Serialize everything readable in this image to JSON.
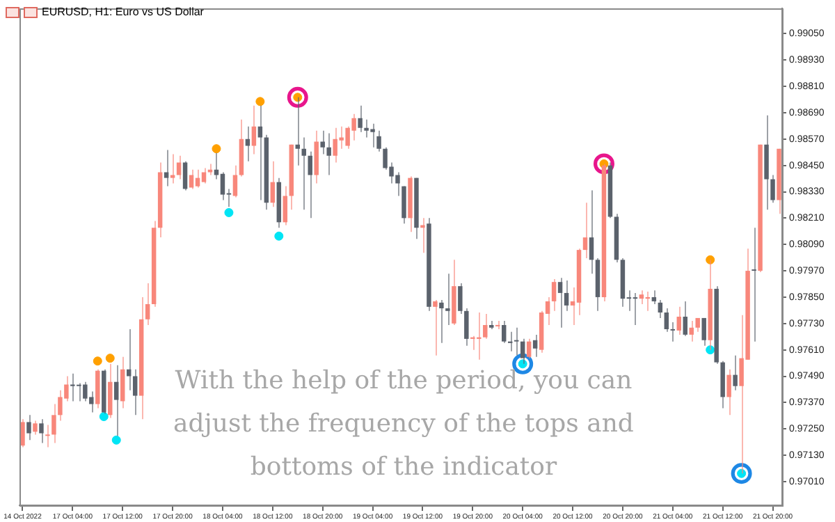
{
  "chart_data": {
    "type": "candlestick",
    "title": "EURUSD, H1: Euro vs US Dollar",
    "annotations": [
      "With the help of the period, you can adjust the frequency of the tops and bottoms of the indicator"
    ],
    "categories": [
      "14 Oct 2022",
      null,
      null,
      null,
      null,
      null,
      null,
      null,
      "17 Oct 04:00",
      null,
      null,
      null,
      null,
      null,
      null,
      null,
      "17 Oct 12:00",
      null,
      null,
      null,
      null,
      null,
      null,
      null,
      "17 Oct 20:00",
      null,
      null,
      null,
      null,
      null,
      null,
      null,
      "18 Oct 04:00",
      null,
      null,
      null,
      null,
      null,
      null,
      null,
      "18 Oct 12:00",
      null,
      null,
      null,
      null,
      null,
      null,
      null,
      "18 Oct 20:00",
      null,
      null,
      null,
      null,
      null,
      null,
      null,
      "19 Oct 04:00",
      null,
      null,
      null,
      null,
      null,
      null,
      null,
      "19 Oct 12:00",
      null,
      null,
      null,
      null,
      null,
      null,
      null,
      "19 Oct 20:00",
      null,
      null,
      null,
      null,
      null,
      null,
      null,
      "20 Oct 04:00",
      null,
      null,
      null,
      null,
      null,
      null,
      null,
      "20 Oct 12:00",
      null,
      null,
      null,
      null,
      null,
      null,
      null,
      "20 Oct 20:00",
      null,
      null,
      null,
      null,
      null,
      null,
      null,
      "21 Oct 04:00",
      null,
      null,
      null,
      null,
      null,
      null,
      null,
      "21 Oct 12:00",
      null,
      null,
      null,
      null,
      null,
      null,
      null,
      "21 Oct 20:00",
      null
    ],
    "ohlc": [
      [
        0.97174,
        0.97294,
        0.97167,
        0.97281
      ],
      [
        0.97281,
        0.97313,
        0.97199,
        0.9723
      ],
      [
        0.97237,
        0.97287,
        0.97224,
        0.97275
      ],
      [
        0.97275,
        0.97294,
        0.97186,
        0.9723
      ],
      [
        0.97218,
        0.97268,
        0.97167,
        0.97224
      ],
      [
        0.97224,
        0.97363,
        0.97186,
        0.97313
      ],
      [
        0.97313,
        0.97426,
        0.97287,
        0.97395
      ],
      [
        0.97388,
        0.9749,
        0.97376,
        0.97452
      ],
      [
        0.97452,
        0.97502,
        0.97376,
        0.97445
      ],
      [
        0.97445,
        0.97458,
        0.97376,
        0.97445
      ],
      [
        0.97452,
        0.97464,
        0.97376,
        0.97388
      ],
      [
        0.97395,
        0.9742,
        0.97325,
        0.97363
      ],
      [
        0.97363,
        0.97521,
        0.97344,
        0.97515
      ],
      [
        0.97515,
        0.97521,
        0.97319,
        0.97325
      ],
      [
        0.97313,
        0.97546,
        0.973,
        0.97464
      ],
      [
        0.97464,
        0.9754,
        0.97218,
        0.97382
      ],
      [
        0.97376,
        0.97578,
        0.97344,
        0.97521
      ],
      [
        0.97521,
        0.97704,
        0.97426,
        0.9749
      ],
      [
        0.9749,
        0.97521,
        0.97313,
        0.97401
      ],
      [
        0.97401,
        0.9785,
        0.97294,
        0.97749
      ],
      [
        0.97749,
        0.97913,
        0.97723,
        0.97818
      ],
      [
        0.97818,
        0.98197,
        0.97806,
        0.98166
      ],
      [
        0.98166,
        0.98463,
        0.98122,
        0.98419
      ],
      [
        0.98419,
        0.9852,
        0.98355,
        0.98393
      ],
      [
        0.98393,
        0.98501,
        0.98368,
        0.98406
      ],
      [
        0.98406,
        0.98494,
        0.98387,
        0.98463
      ],
      [
        0.98463,
        0.98469,
        0.98336,
        0.98343
      ],
      [
        0.98349,
        0.98431,
        0.98343,
        0.98406
      ],
      [
        0.98355,
        0.98431,
        0.98349,
        0.98393
      ],
      [
        0.98374,
        0.98438,
        0.98368,
        0.98419
      ],
      [
        0.98419,
        0.98457,
        0.98406,
        0.98431
      ],
      [
        0.98431,
        0.98507,
        0.98387,
        0.98406
      ],
      [
        0.98412,
        0.98419,
        0.98292,
        0.98317
      ],
      [
        0.98317,
        0.98343,
        0.98261,
        0.98317
      ],
      [
        0.98311,
        0.9845,
        0.98305,
        0.98406
      ],
      [
        0.98406,
        0.98659,
        0.984,
        0.9857
      ],
      [
        0.9857,
        0.98627,
        0.98469,
        0.98539
      ],
      [
        0.98539,
        0.98722,
        0.98501,
        0.98627
      ],
      [
        0.98627,
        0.98722,
        0.98292,
        0.98577
      ],
      [
        0.98577,
        0.98589,
        0.98248,
        0.9828
      ],
      [
        0.9828,
        0.98469,
        0.98261,
        0.98374
      ],
      [
        0.98374,
        0.98393,
        0.98166,
        0.98191
      ],
      [
        0.98191,
        0.98355,
        0.98178,
        0.98311
      ],
      [
        0.98311,
        0.98545,
        0.98248,
        0.98545
      ],
      [
        0.98545,
        0.9876,
        0.9845,
        0.98526
      ],
      [
        0.98526,
        0.98577,
        0.98248,
        0.98494
      ],
      [
        0.98494,
        0.98513,
        0.9821,
        0.98406
      ],
      [
        0.98406,
        0.98608,
        0.98368,
        0.98558
      ],
      [
        0.98558,
        0.98608,
        0.98501,
        0.98532
      ],
      [
        0.98532,
        0.98596,
        0.98406,
        0.98494
      ],
      [
        0.98494,
        0.98621,
        0.98463,
        0.9857
      ],
      [
        0.98564,
        0.98627,
        0.98526,
        0.98577
      ],
      [
        0.98539,
        0.98627,
        0.98526,
        0.98621
      ],
      [
        0.98608,
        0.98684,
        0.98564,
        0.98665
      ],
      [
        0.98665,
        0.98722,
        0.98602,
        0.98621
      ],
      [
        0.98621,
        0.98659,
        0.98577,
        0.98608
      ],
      [
        0.98615,
        0.9864,
        0.98532,
        0.98602
      ],
      [
        0.98583,
        0.98608,
        0.98513,
        0.98526
      ],
      [
        0.98526,
        0.98532,
        0.98431,
        0.98438
      ],
      [
        0.98444,
        0.98463,
        0.98368,
        0.984
      ],
      [
        0.98406,
        0.98419,
        0.98311,
        0.98368
      ],
      [
        0.98355,
        0.98355,
        0.98185,
        0.9821
      ],
      [
        0.9821,
        0.984,
        0.98147,
        0.98393
      ],
      [
        0.98393,
        0.98393,
        0.98115,
        0.98166
      ],
      [
        0.98166,
        0.9821,
        0.98052,
        0.98178
      ],
      [
        0.98185,
        0.9821,
        0.97787,
        0.97806
      ],
      [
        0.97806,
        0.97837,
        0.97584,
        0.97831
      ],
      [
        0.97825,
        0.97837,
        0.97641,
        0.97799
      ],
      [
        0.97799,
        0.97957,
        0.97723,
        0.97787
      ],
      [
        0.9773,
        0.9802,
        0.97723,
        0.979
      ],
      [
        0.979,
        0.97913,
        0.97774,
        0.97787
      ],
      [
        0.97787,
        0.97799,
        0.97629,
        0.9766
      ],
      [
        0.9766,
        0.97673,
        0.9761,
        0.97667
      ],
      [
        0.9766,
        0.9778,
        0.97565,
        0.97667
      ],
      [
        0.97667,
        0.97774,
        0.9766,
        0.97723
      ],
      [
        0.97723,
        0.97742,
        0.97704,
        0.97711
      ],
      [
        0.97717,
        0.97742,
        0.97704,
        0.97723
      ],
      [
        0.97723,
        0.97742,
        0.97641,
        0.97648
      ],
      [
        0.97648,
        0.97692,
        0.97603,
        0.97641
      ],
      [
        0.97648,
        0.97711,
        0.97584,
        0.97648
      ],
      [
        0.97648,
        0.9766,
        0.97546,
        0.97572
      ],
      [
        0.97578,
        0.9766,
        0.97572,
        0.97648
      ],
      [
        0.97654,
        0.97679,
        0.97578,
        0.97616
      ],
      [
        0.9761,
        0.97787,
        0.97597,
        0.9778
      ],
      [
        0.97774,
        0.9785,
        0.97723,
        0.97831
      ],
      [
        0.97831,
        0.97932,
        0.97787,
        0.97919
      ],
      [
        0.97919,
        0.97938,
        0.97711,
        0.97869
      ],
      [
        0.97869,
        0.97926,
        0.97787,
        0.97812
      ],
      [
        0.97812,
        0.97894,
        0.97723,
        0.97831
      ],
      [
        0.97825,
        0.98071,
        0.97768,
        0.98065
      ],
      [
        0.98065,
        0.9828,
        0.98027,
        0.98122
      ],
      [
        0.98122,
        0.98336,
        0.97957,
        0.9802
      ],
      [
        0.9802,
        0.98027,
        0.97787,
        0.9785
      ],
      [
        0.9785,
        0.98457,
        0.97831,
        0.9845
      ],
      [
        0.9845,
        0.98463,
        0.9821,
        0.98216
      ],
      [
        0.98216,
        0.98229,
        0.98008,
        0.9802
      ],
      [
        0.9802,
        0.98027,
        0.97806,
        0.97843
      ],
      [
        0.97843,
        0.97881,
        0.97787,
        0.97843
      ],
      [
        0.97843,
        0.97869,
        0.97723,
        0.97843
      ],
      [
        0.97843,
        0.97881,
        0.97818,
        0.97862
      ],
      [
        0.97843,
        0.97875,
        0.97787,
        0.9785
      ],
      [
        0.9785,
        0.97881,
        0.97818,
        0.97831
      ],
      [
        0.97825,
        0.97837,
        0.97755,
        0.9778
      ],
      [
        0.9778,
        0.97799,
        0.97692,
        0.97704
      ],
      [
        0.97704,
        0.97736,
        0.97648,
        0.97698
      ],
      [
        0.97698,
        0.97806,
        0.97679,
        0.97761
      ],
      [
        0.97761,
        0.97831,
        0.97673,
        0.97679
      ],
      [
        0.97679,
        0.97742,
        0.97648,
        0.97711
      ],
      [
        0.97711,
        0.97755,
        0.97692,
        0.97755
      ],
      [
        0.97755,
        0.97755,
        0.97629,
        0.97654
      ],
      [
        0.97654,
        0.9802,
        0.9761,
        0.97888
      ],
      [
        0.97888,
        0.979,
        0.97546,
        0.97553
      ],
      [
        0.97553,
        0.97559,
        0.97344,
        0.97395
      ],
      [
        0.97395,
        0.97521,
        0.97313,
        0.97496
      ],
      [
        0.97496,
        0.97584,
        0.97426,
        0.97445
      ],
      [
        0.97445,
        0.97768,
        0.97047,
        0.97572
      ],
      [
        0.97565,
        0.98071,
        0.97565,
        0.9797
      ],
      [
        0.9797,
        0.98166,
        0.97648,
        0.9797
      ],
      [
        0.9797,
        0.98545,
        0.97964,
        0.98545
      ],
      [
        0.98545,
        0.98678,
        0.98248,
        0.98387
      ],
      [
        0.98387,
        0.98406,
        0.9828,
        0.98292
      ],
      [
        0.98292,
        0.98526,
        0.98229,
        0.98526
      ]
    ],
    "colors": [
      "#f8877b",
      "#5b626c",
      "#f8877b",
      "#5b626c",
      "#f8877b",
      "#f8877b",
      "#f8877b",
      "#f8877b",
      "#5b626c",
      "#5b626c",
      "#5b626c",
      "#5b626c",
      "#f8877b",
      "#5b626c",
      "#f8877b",
      "#5b626c",
      "#f8877b",
      "#5b626c",
      "#5b626c",
      "#f8877b",
      "#f8877b",
      "#f8877b",
      "#f8877b",
      "#5b626c",
      "#f8877b",
      "#f8877b",
      "#5b626c",
      "#f8877b",
      "#f8877b",
      "#f8877b",
      "#f8877b",
      "#5b626c",
      "#5b626c",
      "#5b626c",
      "#f8877b",
      "#f8877b",
      "#5b626c",
      "#f8877b",
      "#5b626c",
      "#5b626c",
      "#f8877b",
      "#5b626c",
      "#f8877b",
      "#f8877b",
      "#5b626c",
      "#5b626c",
      "#5b626c",
      "#f8877b",
      "#5b626c",
      "#5b626c",
      "#f8877b",
      "#f8877b",
      "#f8877b",
      "#f8877b",
      "#5b626c",
      "#5b626c",
      "#5b626c",
      "#5b626c",
      "#5b626c",
      "#5b626c",
      "#5b626c",
      "#5b626c",
      "#f8877b",
      "#5b626c",
      "#f8877b",
      "#5b626c",
      "#f8877b",
      "#5b626c",
      "#5b626c",
      "#f8877b",
      "#5b626c",
      "#5b626c",
      "#f8877b",
      "#f8877b",
      "#f8877b",
      "#5b626c",
      "#f8877b",
      "#5b626c",
      "#5b626c",
      "#5b626c",
      "#5b626c",
      "#f8877b",
      "#5b626c",
      "#f8877b",
      "#f8877b",
      "#f8877b",
      "#5b626c",
      "#5b626c",
      "#f8877b",
      "#f8877b",
      "#f8877b",
      "#5b626c",
      "#5b626c",
      "#f8877b",
      "#5b626c",
      "#5b626c",
      "#5b626c",
      "#5b626c",
      "#5b626c",
      "#f8877b",
      "#f8877b",
      "#5b626c",
      "#5b626c",
      "#5b626c",
      "#5b626c",
      "#f8877b",
      "#5b626c",
      "#f8877b",
      "#f8877b",
      "#5b626c",
      "#f8877b",
      "#5b626c",
      "#5b626c",
      "#f8877b",
      "#5b626c",
      "#f8877b",
      "#f8877b",
      "#5b626c",
      "#f8877b",
      "#5b626c",
      "#5b626c",
      "#f8877b"
    ],
    "series": [
      {
        "type": "scatter",
        "color": "#e8168c",
        "marker": "circle",
        "values": [
          null,
          null,
          null,
          null,
          null,
          null,
          null,
          null,
          null,
          null,
          null,
          null,
          null,
          null,
          null,
          null,
          null,
          null,
          null,
          null,
          null,
          null,
          null,
          null,
          null,
          null,
          null,
          null,
          null,
          null,
          null,
          null,
          null,
          null,
          null,
          null,
          null,
          null,
          null,
          null,
          null,
          null,
          null,
          null,
          0.9876,
          null,
          null,
          null,
          null,
          null,
          null,
          null,
          null,
          null,
          null,
          null,
          null,
          null,
          null,
          null,
          null,
          null,
          null,
          null,
          null,
          null,
          null,
          null,
          null,
          null,
          null,
          null,
          null,
          null,
          null,
          null,
          null,
          null,
          null,
          null,
          null,
          null,
          null,
          null,
          null,
          null,
          null,
          null,
          null,
          null,
          null,
          null,
          null,
          0.98457,
          null,
          null,
          null,
          null,
          null,
          null,
          null,
          null,
          null,
          null,
          null,
          null,
          null,
          null,
          null,
          null,
          null,
          null,
          null,
          null,
          null,
          null,
          null,
          null,
          null,
          null,
          null,
          null
        ]
      },
      {
        "type": "scatter",
        "color": "#1e88e5",
        "marker": "circle",
        "values": [
          null,
          null,
          null,
          null,
          null,
          null,
          null,
          null,
          null,
          null,
          null,
          null,
          null,
          null,
          null,
          null,
          null,
          null,
          null,
          null,
          null,
          null,
          null,
          null,
          null,
          null,
          null,
          null,
          null,
          null,
          null,
          null,
          null,
          null,
          null,
          null,
          null,
          null,
          null,
          null,
          null,
          null,
          null,
          null,
          null,
          null,
          null,
          null,
          null,
          null,
          null,
          null,
          null,
          null,
          null,
          null,
          null,
          null,
          null,
          null,
          null,
          null,
          null,
          null,
          null,
          null,
          null,
          null,
          null,
          null,
          null,
          null,
          null,
          null,
          null,
          null,
          null,
          null,
          null,
          null,
          0.97546,
          null,
          null,
          null,
          null,
          null,
          null,
          null,
          null,
          null,
          null,
          null,
          null,
          null,
          null,
          null,
          null,
          null,
          null,
          null,
          null,
          null,
          null,
          null,
          null,
          null,
          null,
          null,
          null,
          null,
          null,
          null,
          null,
          null,
          null,
          0.97047,
          null,
          null,
          null,
          null,
          null,
          null
        ]
      },
      {
        "type": "scatter",
        "color": "#ffa000",
        "marker": "circle",
        "values": [
          null,
          null,
          null,
          null,
          null,
          null,
          null,
          null,
          null,
          null,
          null,
          null,
          0.97559,
          null,
          0.97572,
          null,
          null,
          null,
          null,
          null,
          null,
          null,
          null,
          null,
          null,
          null,
          null,
          null,
          null,
          null,
          null,
          0.98526,
          null,
          null,
          null,
          null,
          null,
          null,
          0.98741,
          null,
          null,
          null,
          null,
          null,
          0.9876,
          null,
          null,
          null,
          null,
          null,
          null,
          null,
          null,
          null,
          null,
          null,
          null,
          null,
          null,
          null,
          null,
          null,
          null,
          null,
          null,
          null,
          null,
          null,
          null,
          null,
          null,
          null,
          null,
          null,
          null,
          null,
          null,
          null,
          null,
          null,
          null,
          null,
          null,
          null,
          null,
          null,
          null,
          null,
          null,
          null,
          null,
          null,
          null,
          0.98457,
          null,
          null,
          null,
          null,
          null,
          null,
          null,
          null,
          null,
          null,
          null,
          null,
          null,
          null,
          null,
          null,
          0.9802,
          null,
          null,
          null,
          null,
          null,
          null,
          null,
          null,
          null,
          null,
          null
        ]
      },
      {
        "type": "scatter",
        "color": "#00e5f5",
        "marker": "circle",
        "values": [
          null,
          null,
          null,
          null,
          null,
          null,
          null,
          null,
          null,
          null,
          null,
          null,
          null,
          0.97306,
          null,
          0.97199,
          null,
          null,
          null,
          null,
          null,
          null,
          null,
          null,
          null,
          null,
          null,
          null,
          null,
          null,
          null,
          null,
          null,
          0.98235,
          null,
          null,
          null,
          null,
          null,
          null,
          null,
          0.98128,
          null,
          null,
          null,
          null,
          null,
          null,
          null,
          null,
          null,
          null,
          null,
          null,
          null,
          null,
          null,
          null,
          null,
          null,
          null,
          null,
          null,
          null,
          null,
          null,
          null,
          null,
          null,
          null,
          null,
          null,
          null,
          null,
          null,
          null,
          null,
          null,
          null,
          null,
          0.97546,
          null,
          null,
          null,
          null,
          null,
          null,
          null,
          null,
          null,
          null,
          null,
          null,
          null,
          null,
          null,
          null,
          null,
          null,
          null,
          null,
          null,
          null,
          null,
          null,
          null,
          null,
          null,
          null,
          null,
          0.9761,
          null,
          null,
          null,
          null,
          0.97047,
          null,
          null,
          null,
          null,
          null,
          null
        ]
      }
    ],
    "ylim": [
      0.96902,
      0.99164
    ],
    "yticks": [
      {
        "value": 0.9905,
        "label": "0.99050"
      },
      {
        "value": 0.9893,
        "label": "0.98930"
      },
      {
        "value": 0.9881,
        "label": "0.98810"
      },
      {
        "value": 0.9869,
        "label": "0.98690"
      },
      {
        "value": 0.9857,
        "label": "0.98570"
      },
      {
        "value": 0.9845,
        "label": "0.98450"
      },
      {
        "value": 0.9833,
        "label": "0.98330"
      },
      {
        "value": 0.9821,
        "label": "0.98210"
      },
      {
        "value": 0.9809,
        "label": "0.98090"
      },
      {
        "value": 0.9797,
        "label": "0.97970"
      },
      {
        "value": 0.9785,
        "label": "0.97850"
      },
      {
        "value": 0.9773,
        "label": "0.97730"
      },
      {
        "value": 0.9761,
        "label": "0.97610"
      },
      {
        "value": 0.9749,
        "label": "0.97490"
      },
      {
        "value": 0.9737,
        "label": "0.97370"
      },
      {
        "value": 0.9725,
        "label": "0.97250"
      },
      {
        "value": 0.9713,
        "label": "0.97130"
      },
      {
        "value": 0.9701,
        "label": "0.97010"
      }
    ]
  }
}
